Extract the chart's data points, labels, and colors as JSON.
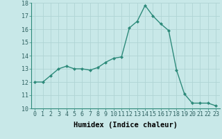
{
  "x": [
    0,
    1,
    2,
    3,
    4,
    5,
    6,
    7,
    8,
    9,
    10,
    11,
    12,
    13,
    14,
    15,
    16,
    17,
    18,
    19,
    20,
    21,
    22,
    23
  ],
  "y": [
    12.0,
    12.0,
    12.5,
    13.0,
    13.2,
    13.0,
    13.0,
    12.9,
    13.1,
    13.5,
    13.8,
    13.9,
    16.1,
    16.6,
    17.8,
    17.0,
    16.4,
    15.9,
    12.9,
    11.1,
    10.4,
    10.4,
    10.4,
    10.2
  ],
  "xlim": [
    -0.5,
    23.5
  ],
  "ylim": [
    10,
    18
  ],
  "yticks": [
    10,
    11,
    12,
    13,
    14,
    15,
    16,
    17,
    18
  ],
  "xticks": [
    0,
    1,
    2,
    3,
    4,
    5,
    6,
    7,
    8,
    9,
    10,
    11,
    12,
    13,
    14,
    15,
    16,
    17,
    18,
    19,
    20,
    21,
    22,
    23
  ],
  "xlabel": "Humidex (Indice chaleur)",
  "line_color": "#2d8a7a",
  "bg_color": "#c8e8e8",
  "grid_color": "#b0d4d4",
  "marker": "D",
  "marker_size": 2.0,
  "line_width": 1.0,
  "xlabel_fontsize": 7.5,
  "tick_fontsize": 6.0
}
